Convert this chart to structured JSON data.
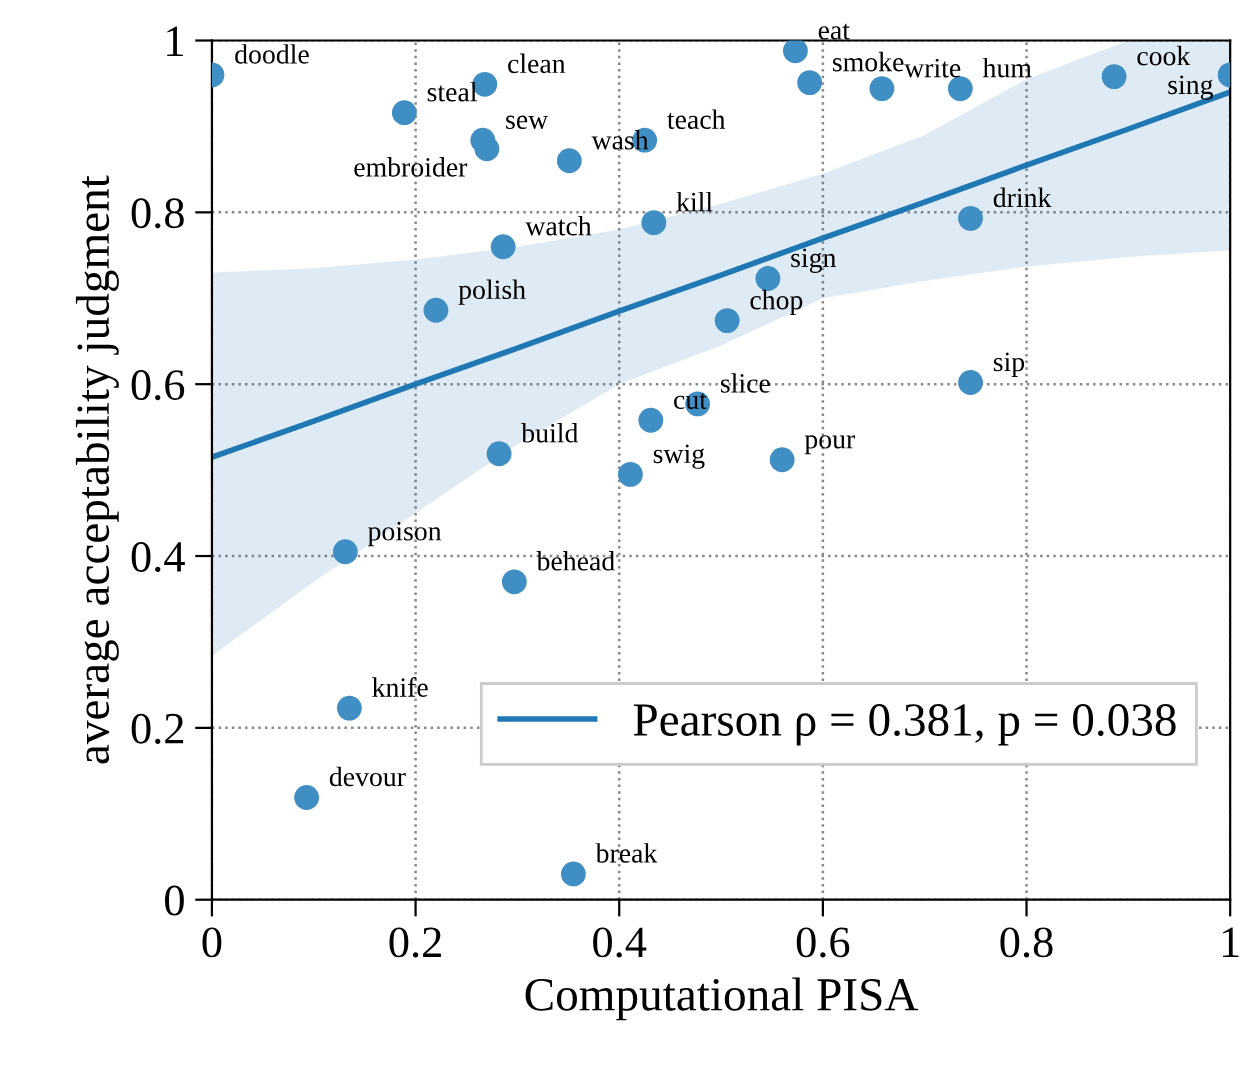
{
  "chart_data": {
    "type": "scatter",
    "xlabel": "Computational PISA",
    "ylabel": "average acceptability judgment",
    "xlim": [
      0,
      1
    ],
    "ylim": [
      0,
      1
    ],
    "xticks": [
      0,
      0.2,
      0.4,
      0.6,
      0.8,
      1
    ],
    "yticks": [
      0,
      0.2,
      0.4,
      0.6,
      0.8,
      1
    ],
    "grid": true,
    "legend": "bottom right",
    "series": [
      {
        "color": "#3f8ec4",
        "marker": "circle",
        "x": [
          0,
          0.189,
          0.268,
          0.266,
          0.27,
          0.351,
          0.425,
          0.434,
          0.286,
          0.22,
          0.573,
          0.587,
          0.658,
          0.735,
          0.886,
          1.0,
          0.745,
          0.546,
          0.506,
          0.745,
          0.477,
          0.431,
          0.56,
          0.282,
          0.411,
          0.131,
          0.297,
          0.135,
          0.093,
          0.355
        ],
        "values": [
          0.96,
          0.916,
          0.949,
          0.884,
          0.874,
          0.86,
          0.884,
          0.788,
          0.76,
          0.686,
          0.988,
          0.951,
          0.944,
          0.944,
          0.958,
          0.96,
          0.793,
          0.723,
          0.674,
          0.602,
          0.577,
          0.558,
          0.512,
          0.519,
          0.495,
          0.405,
          0.37,
          0.223,
          0.119,
          0.03
        ],
        "value_labels": [
          "doodle",
          "steal",
          "clean",
          "sew",
          "embroider",
          "wash",
          "teach",
          "kill",
          "watch",
          "polish",
          "eat",
          "smoke",
          "write",
          "hum",
          "cook",
          "sing",
          "drink",
          "sign",
          "chop",
          "sip",
          "slice",
          "cut",
          "pour",
          "build",
          "swig",
          "poison",
          "behead",
          "knife",
          "devour",
          "break"
        ]
      },
      {
        "type": "line",
        "name": "Pearson ρ = 0.381, p = 0.038",
        "color": "#1f77b4",
        "line_style": "solid",
        "marker": "none",
        "x": [
          0,
          0.1,
          0.2,
          0.3,
          0.4,
          0.5,
          0.6,
          0.7,
          0.8,
          0.9,
          1.0
        ],
        "values": [
          0.515,
          0.557,
          0.6,
          0.642,
          0.685,
          0.727,
          0.77,
          0.812,
          0.855,
          0.897,
          0.94
        ],
        "lower": [
          0.284,
          0.37,
          0.45,
          0.53,
          0.6,
          0.645,
          0.7,
          0.72,
          0.737,
          0.748,
          0.756
        ],
        "upper": [
          0.73,
          0.735,
          0.745,
          0.76,
          0.78,
          0.81,
          0.845,
          0.89,
          0.955,
          1.0,
          1.0
        ]
      }
    ]
  }
}
